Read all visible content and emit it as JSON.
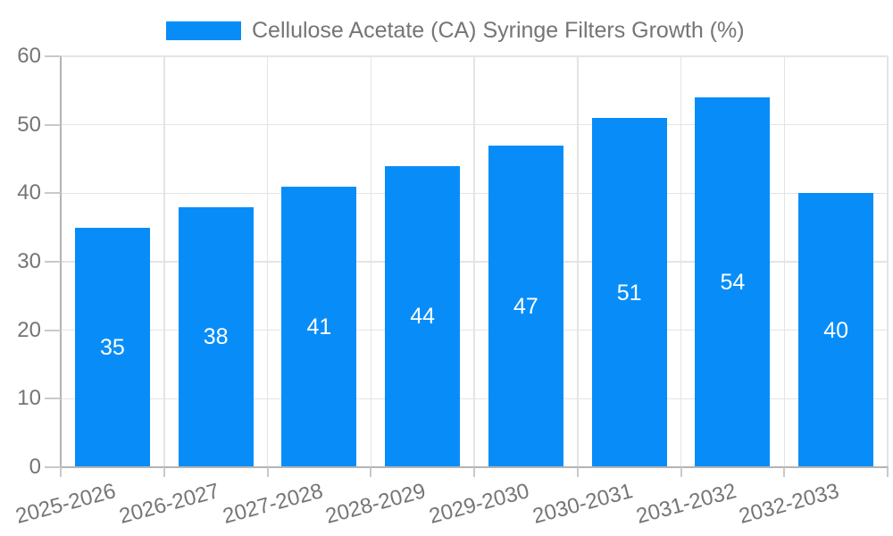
{
  "chart_data": {
    "type": "bar",
    "title": "Cellulose Acetate (CA) Syringe Filters Growth (%)",
    "categories": [
      "2025-2026",
      "2026-2027",
      "2027-2028",
      "2028-2029",
      "2029-2030",
      "2030-2031",
      "2031-2032",
      "2032-2033"
    ],
    "values": [
      35,
      38,
      41,
      44,
      47,
      51,
      54,
      40
    ],
    "bar_value_labels": [
      "35",
      "38",
      "41",
      "44",
      "47",
      "51",
      "54",
      "40"
    ],
    "xlabel": "",
    "ylabel": "",
    "ylim": [
      0,
      60
    ],
    "yticks": [
      0,
      10,
      20,
      30,
      40,
      50,
      60
    ],
    "ytick_labels": [
      "0",
      "10",
      "20",
      "30",
      "40",
      "50",
      "60"
    ],
    "grid": true,
    "legend_position": "top",
    "x_label_rotation_deg": -15,
    "colors": {
      "bar": "#088DF8",
      "bar_label": "#FFFFFF",
      "grid": "#E4E4E4",
      "axis": "#B4B4B4",
      "tick": "#C9C9C9",
      "text": "#757575",
      "background": "#FFFFFF"
    }
  }
}
